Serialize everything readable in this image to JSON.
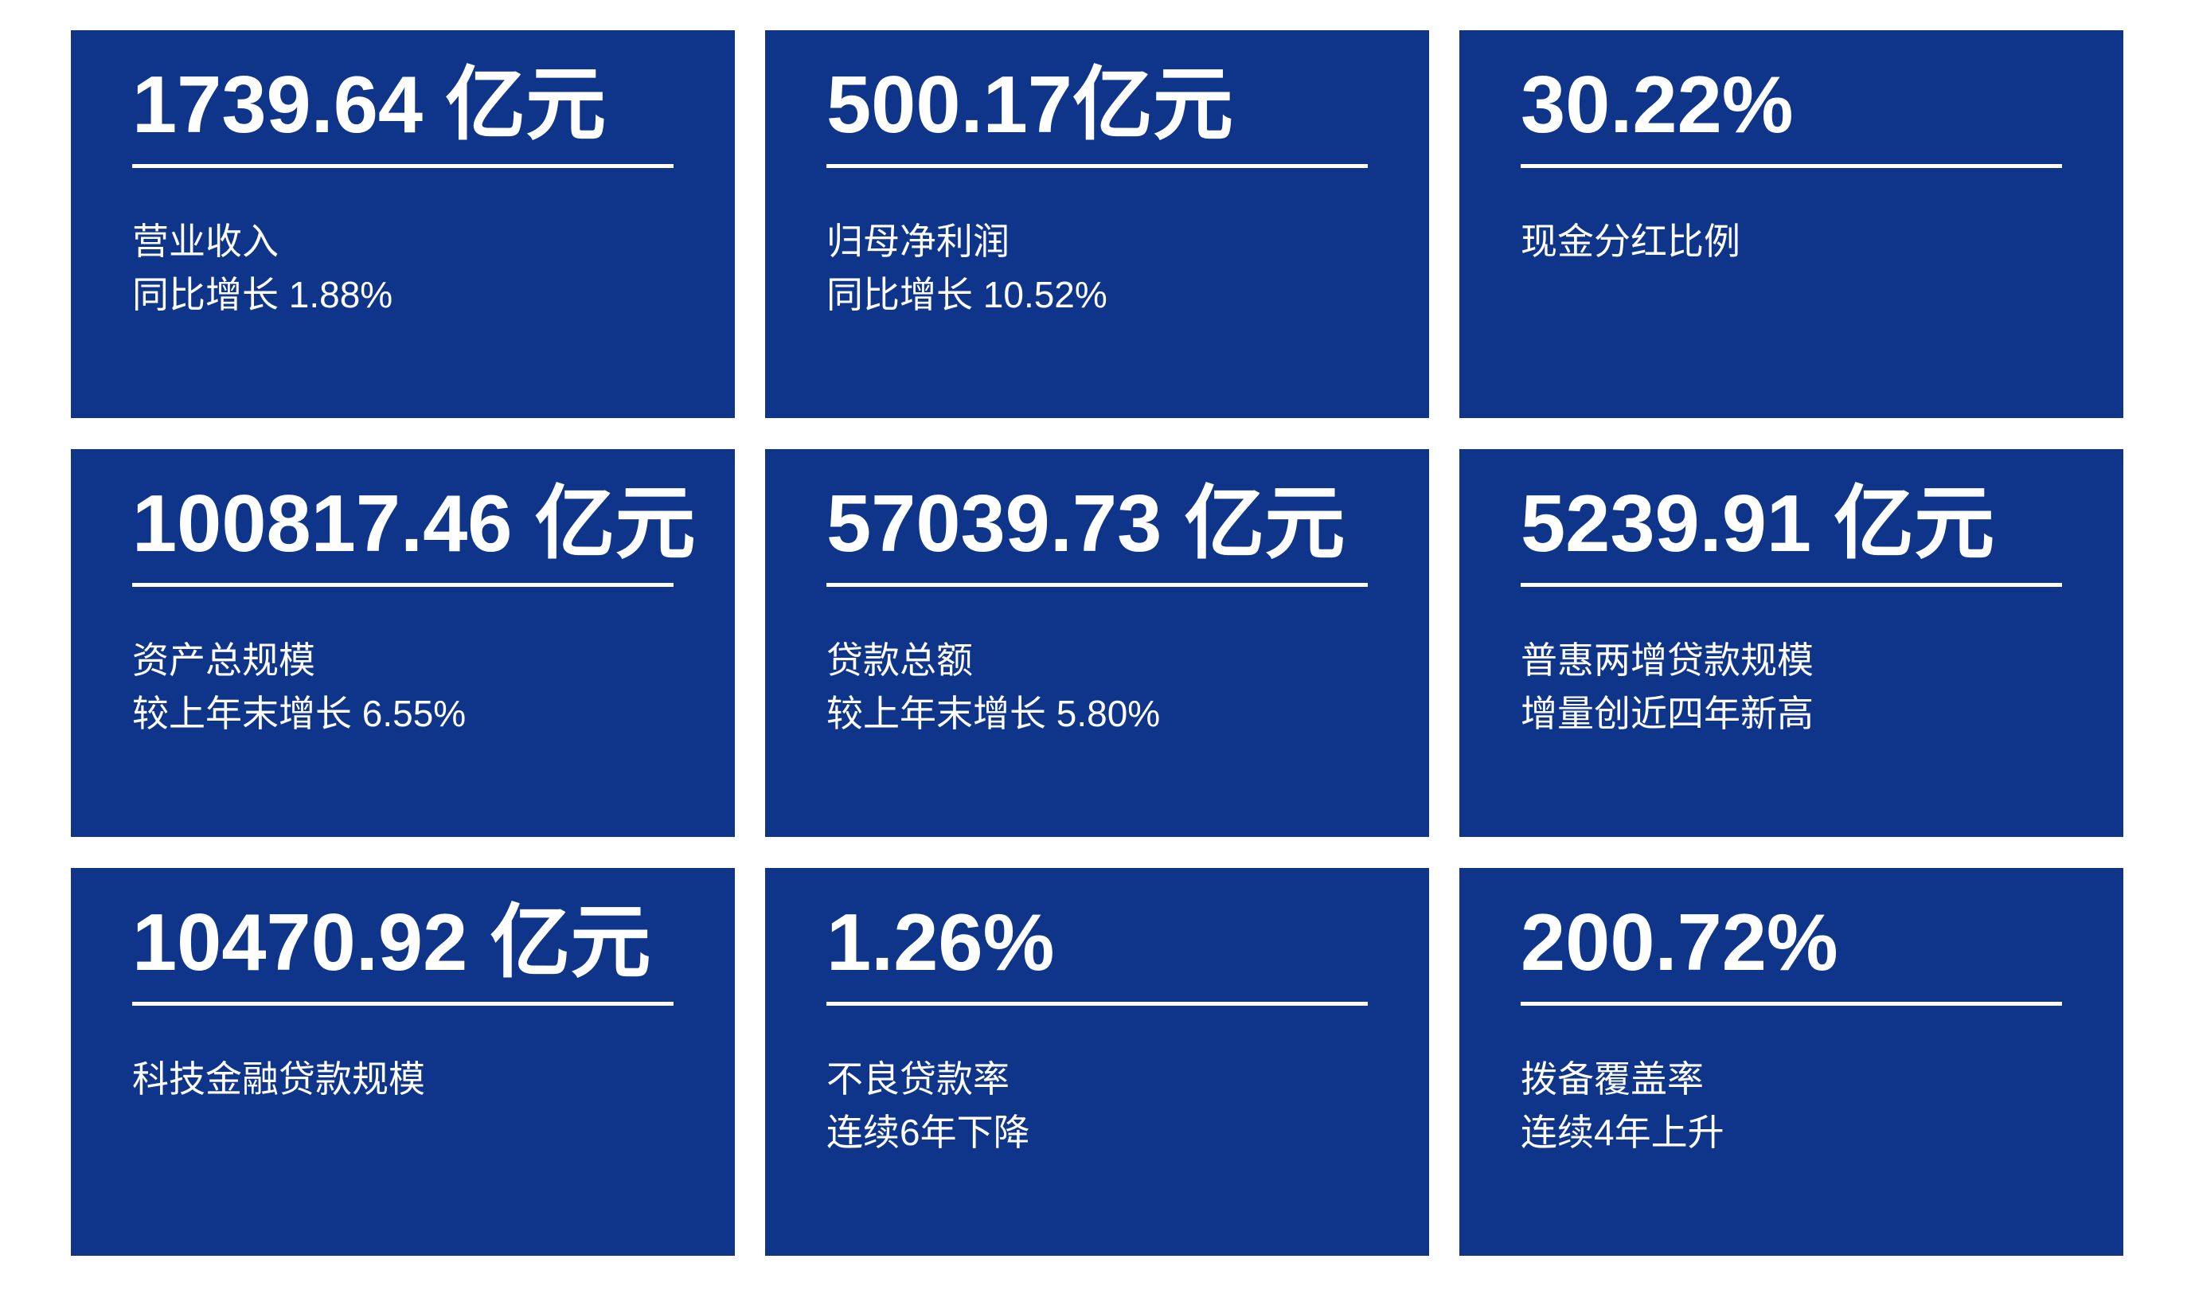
{
  "theme": {
    "card_color": "#0f358b",
    "text_color": "#ffffff",
    "background": "#ffffff"
  },
  "cards": [
    {
      "value": "1739.64 亿元",
      "line1": "营业收入",
      "line2": "同比增长 1.88%"
    },
    {
      "value": "500.17亿元",
      "line1": "归母净利润",
      "line2": "同比增长 10.52%"
    },
    {
      "value": "30.22%",
      "line1": "现金分红比例",
      "line2": ""
    },
    {
      "value": "100817.46 亿元",
      "line1": "资产总规模",
      "line2": "较上年末增长 6.55%"
    },
    {
      "value": "57039.73 亿元",
      "line1": "贷款总额",
      "line2": "较上年末增长 5.80%"
    },
    {
      "value": "5239.91 亿元",
      "line1": "普惠两增贷款规模",
      "line2": "增量创近四年新高"
    },
    {
      "value": "10470.92 亿元",
      "line1": "科技金融贷款规模",
      "line2": ""
    },
    {
      "value": "1.26%",
      "line1": "不良贷款率",
      "line2": "连续6年下降"
    },
    {
      "value": "200.72%",
      "line1": "拨备覆盖率",
      "line2": "连续4年上升"
    }
  ]
}
